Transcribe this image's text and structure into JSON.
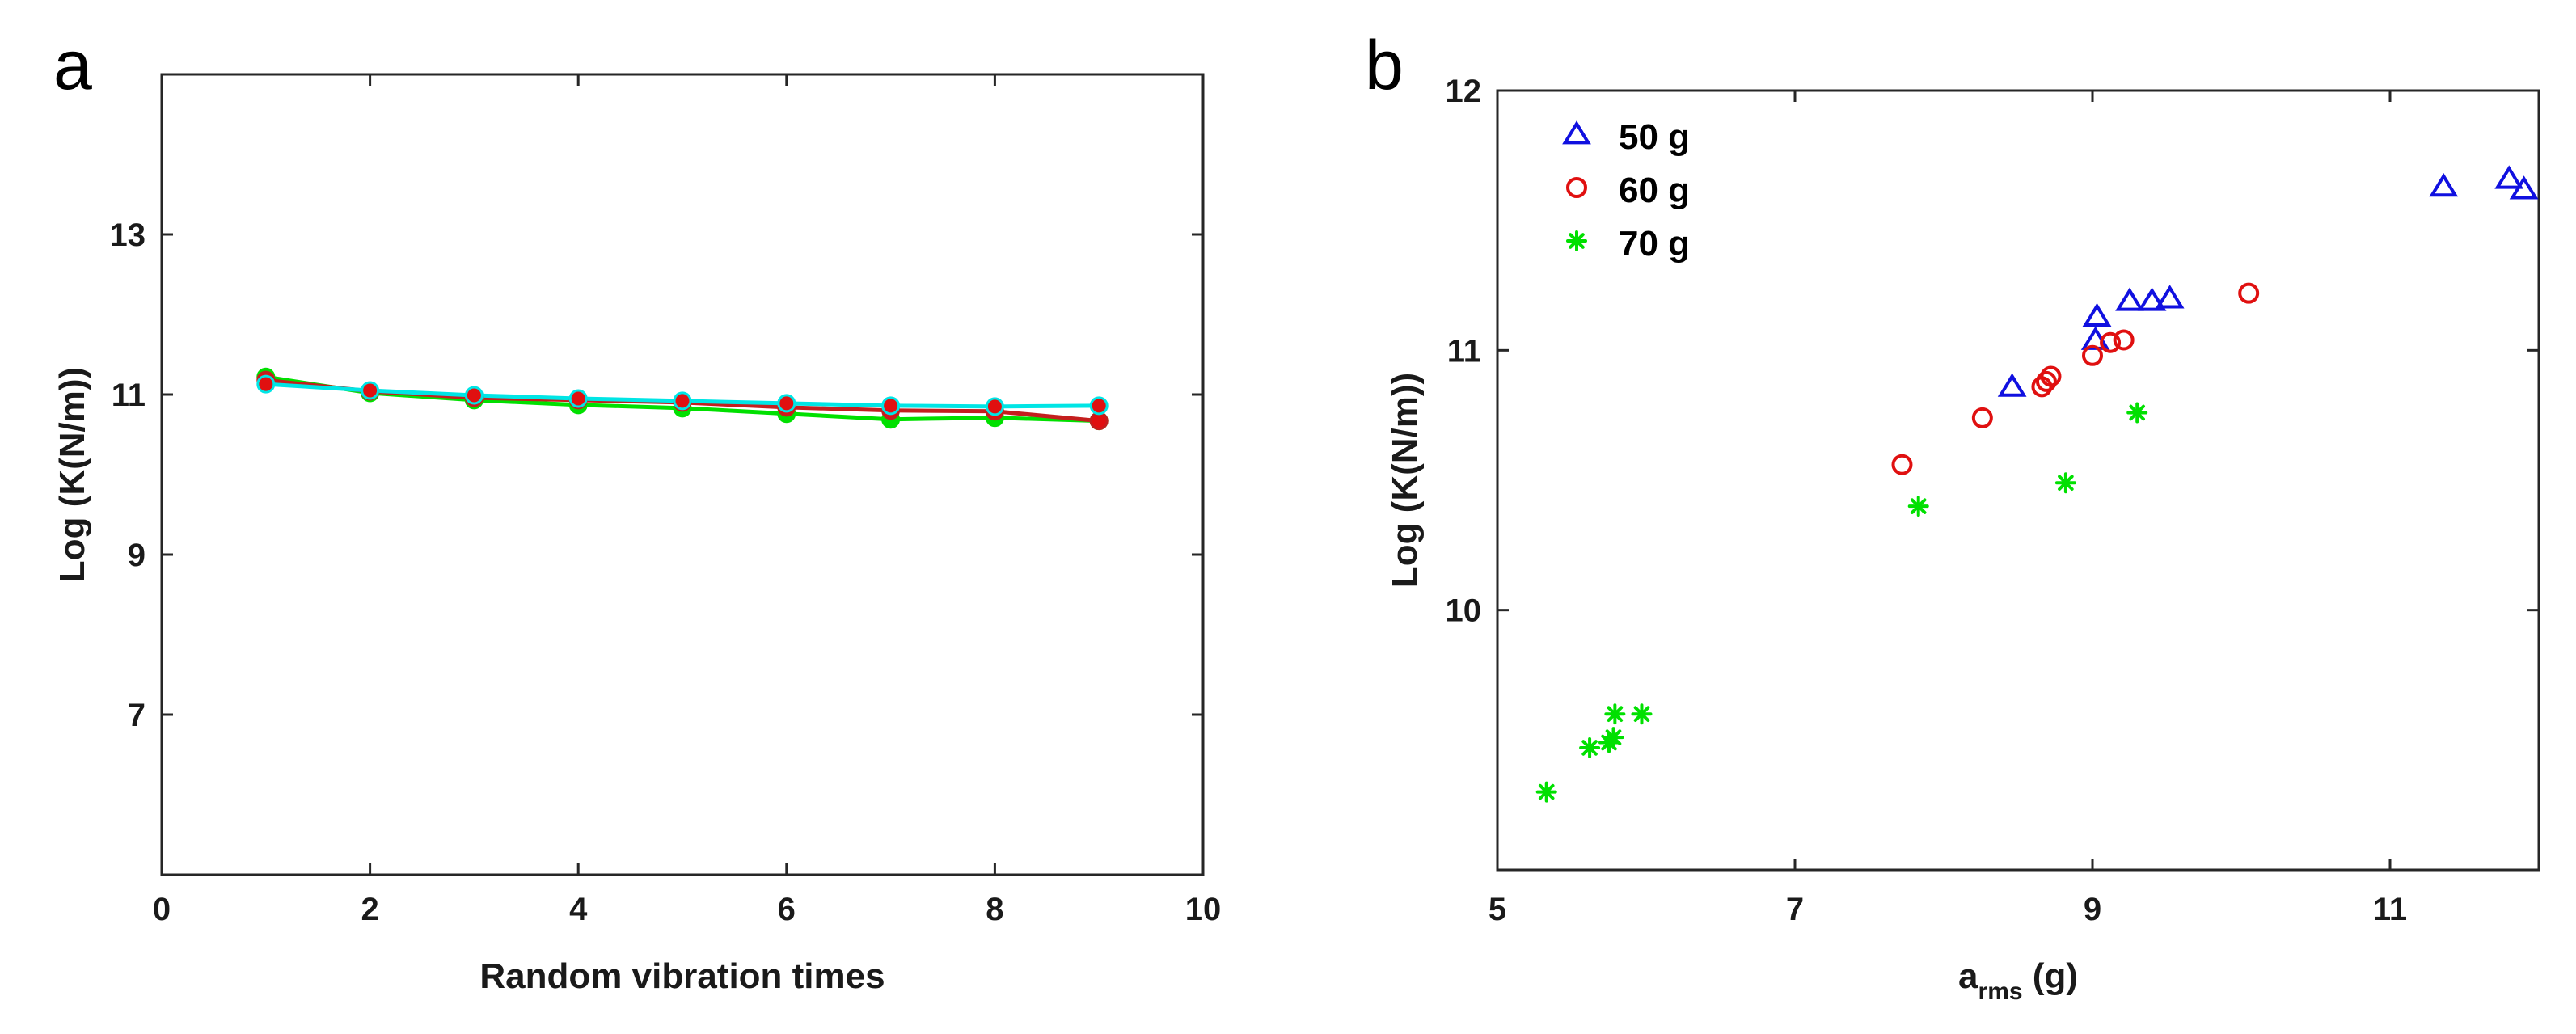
{
  "chart_data": [
    {
      "panel": "a",
      "type": "line",
      "xlabel": "Random vibration times",
      "ylabel": "Log (K(N/m))",
      "xlim": [
        0,
        10
      ],
      "ylim": [
        5,
        15
      ],
      "xticks": [
        0,
        2,
        4,
        6,
        8,
        10
      ],
      "yticks": [
        7,
        9,
        11,
        13
      ],
      "x": [
        1,
        2,
        3,
        4,
        5,
        6,
        7,
        8,
        9
      ],
      "series": [
        {
          "name": "green",
          "color": "#00e000",
          "marker_fill": "#00e000",
          "values": [
            11.22,
            11.02,
            10.93,
            10.87,
            10.83,
            10.76,
            10.69,
            10.71,
            10.67
          ]
        },
        {
          "name": "red",
          "color": "#c41e1e",
          "marker_fill": "#e01010",
          "values": [
            11.18,
            11.04,
            10.96,
            10.93,
            10.9,
            10.84,
            10.8,
            10.79,
            10.67
          ]
        },
        {
          "name": "cyan",
          "color": "#00e5e5",
          "marker_fill": "#e01010",
          "values": [
            11.13,
            11.05,
            10.99,
            10.95,
            10.92,
            10.89,
            10.86,
            10.85,
            10.86
          ]
        }
      ]
    },
    {
      "panel": "b",
      "type": "scatter",
      "xlabel_main": "a",
      "xlabel_sub": "rms",
      "xlabel_tail": " (g)",
      "ylabel": "Log (K(N/m))",
      "xlim": [
        5,
        12
      ],
      "ylim": [
        9.0,
        12.0
      ],
      "xticks": [
        5,
        7,
        9,
        11
      ],
      "yticks": [
        10,
        11,
        12
      ],
      "legend_position": "top-left",
      "series": [
        {
          "name": "50 g",
          "marker": "triangle",
          "color": "#1010e0",
          "x": [
            8.46,
            9.02,
            9.03,
            9.25,
            9.4,
            9.52,
            11.36,
            11.8,
            11.9
          ],
          "y": [
            10.86,
            11.04,
            11.13,
            11.19,
            11.19,
            11.2,
            11.63,
            11.66,
            11.62
          ]
        },
        {
          "name": "60 g",
          "marker": "circle",
          "color": "#e01010",
          "x": [
            7.72,
            8.26,
            8.66,
            8.69,
            8.72,
            9.0,
            9.12,
            9.21,
            10.05
          ],
          "y": [
            10.56,
            10.74,
            10.86,
            10.88,
            10.9,
            10.98,
            11.03,
            11.04,
            11.22
          ]
        },
        {
          "name": "70 g",
          "marker": "star",
          "color": "#00e000",
          "x": [
            5.33,
            5.62,
            5.75,
            5.78,
            5.79,
            5.97,
            7.83,
            8.82,
            9.3
          ],
          "y": [
            9.3,
            9.47,
            9.49,
            9.51,
            9.6,
            9.6,
            10.4,
            10.49,
            10.76
          ]
        }
      ]
    }
  ]
}
